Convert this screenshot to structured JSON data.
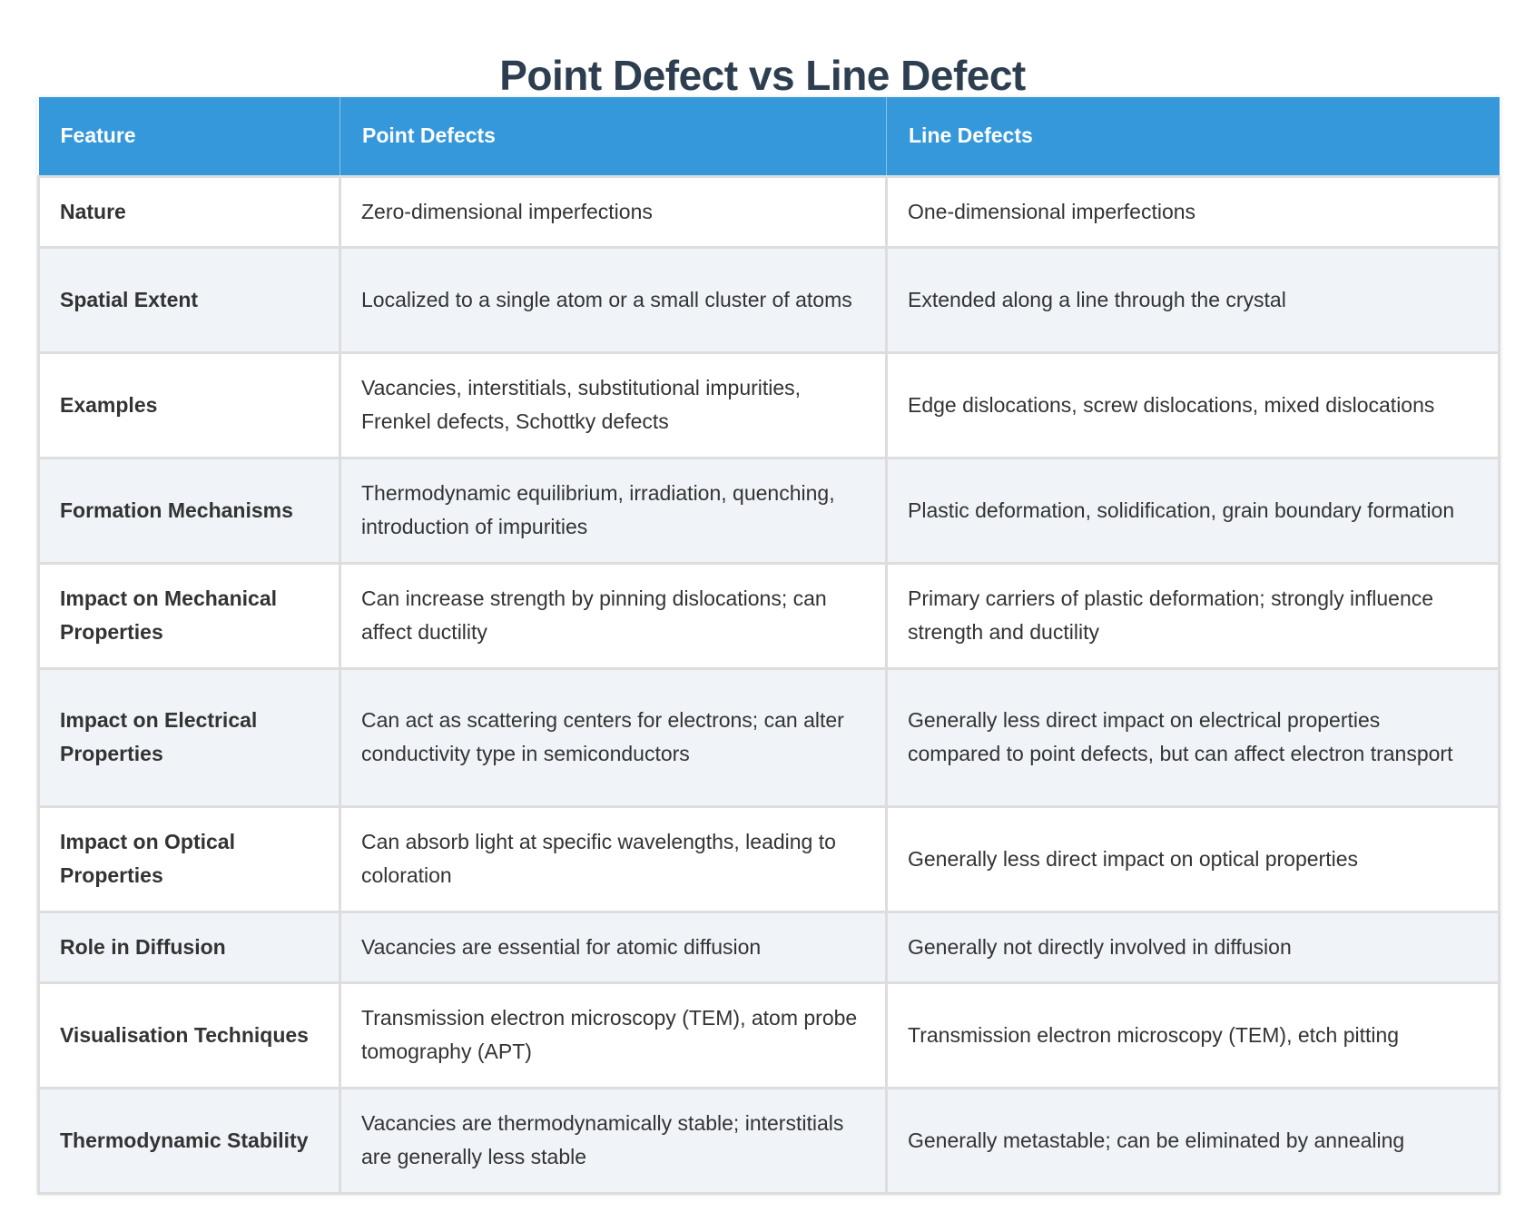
{
  "title": "Point Defect vs Line Defect",
  "colors": {
    "header_bg": "#3498db",
    "header_text": "#ffffff",
    "title_text": "#2c3e50",
    "row_alt_bg": "#f0f4f9",
    "border": "#dddddd"
  },
  "table": {
    "headers": [
      "Feature",
      "Point Defects",
      "Line Defects"
    ],
    "rows": [
      {
        "feature": "Nature",
        "point": "Zero-dimensional imperfections",
        "line": "One-dimensional imperfections"
      },
      {
        "feature": "Spatial Extent",
        "point": "Localized to a single atom or a small cluster of atoms",
        "line": "Extended along a line through the crystal"
      },
      {
        "feature": "Examples",
        "point": "Vacancies, interstitials, substitutional impurities, Frenkel defects, Schottky defects",
        "line": "Edge dislocations, screw dislocations, mixed dislocations"
      },
      {
        "feature": "Formation Mechanisms",
        "point": "Thermodynamic equilibrium, irradiation, quenching, introduction of impurities",
        "line": "Plastic deformation, solidification, grain boundary formation"
      },
      {
        "feature": "Impact on Mechanical Properties",
        "point": "Can increase strength by pinning dislocations; can affect ductility",
        "line": "Primary carriers of plastic deformation; strongly influence strength and ductility"
      },
      {
        "feature": "Impact on Electrical Properties",
        "point": "Can act as scattering centers for electrons; can alter conductivity type in semiconductors",
        "line": "Generally less direct impact on electrical properties compared to point defects, but can affect electron transport"
      },
      {
        "feature": "Impact on Optical Properties",
        "point": "Can absorb light at specific wavelengths, leading to coloration",
        "line": "Generally less direct impact on optical properties"
      },
      {
        "feature": "Role in Diffusion",
        "point": "Vacancies are essential for atomic diffusion",
        "line": "Generally not directly involved in diffusion"
      },
      {
        "feature": "Visualisation Techniques",
        "point": "Transmission electron microscopy (TEM), atom probe tomography (APT)",
        "line": "Transmission electron microscopy (TEM), etch pitting"
      },
      {
        "feature": "Thermodynamic Stability",
        "point": "Vacancies are thermodynamically stable; interstitials are generally less stable",
        "line": "Generally metastable; can be eliminated by annealing"
      }
    ]
  }
}
